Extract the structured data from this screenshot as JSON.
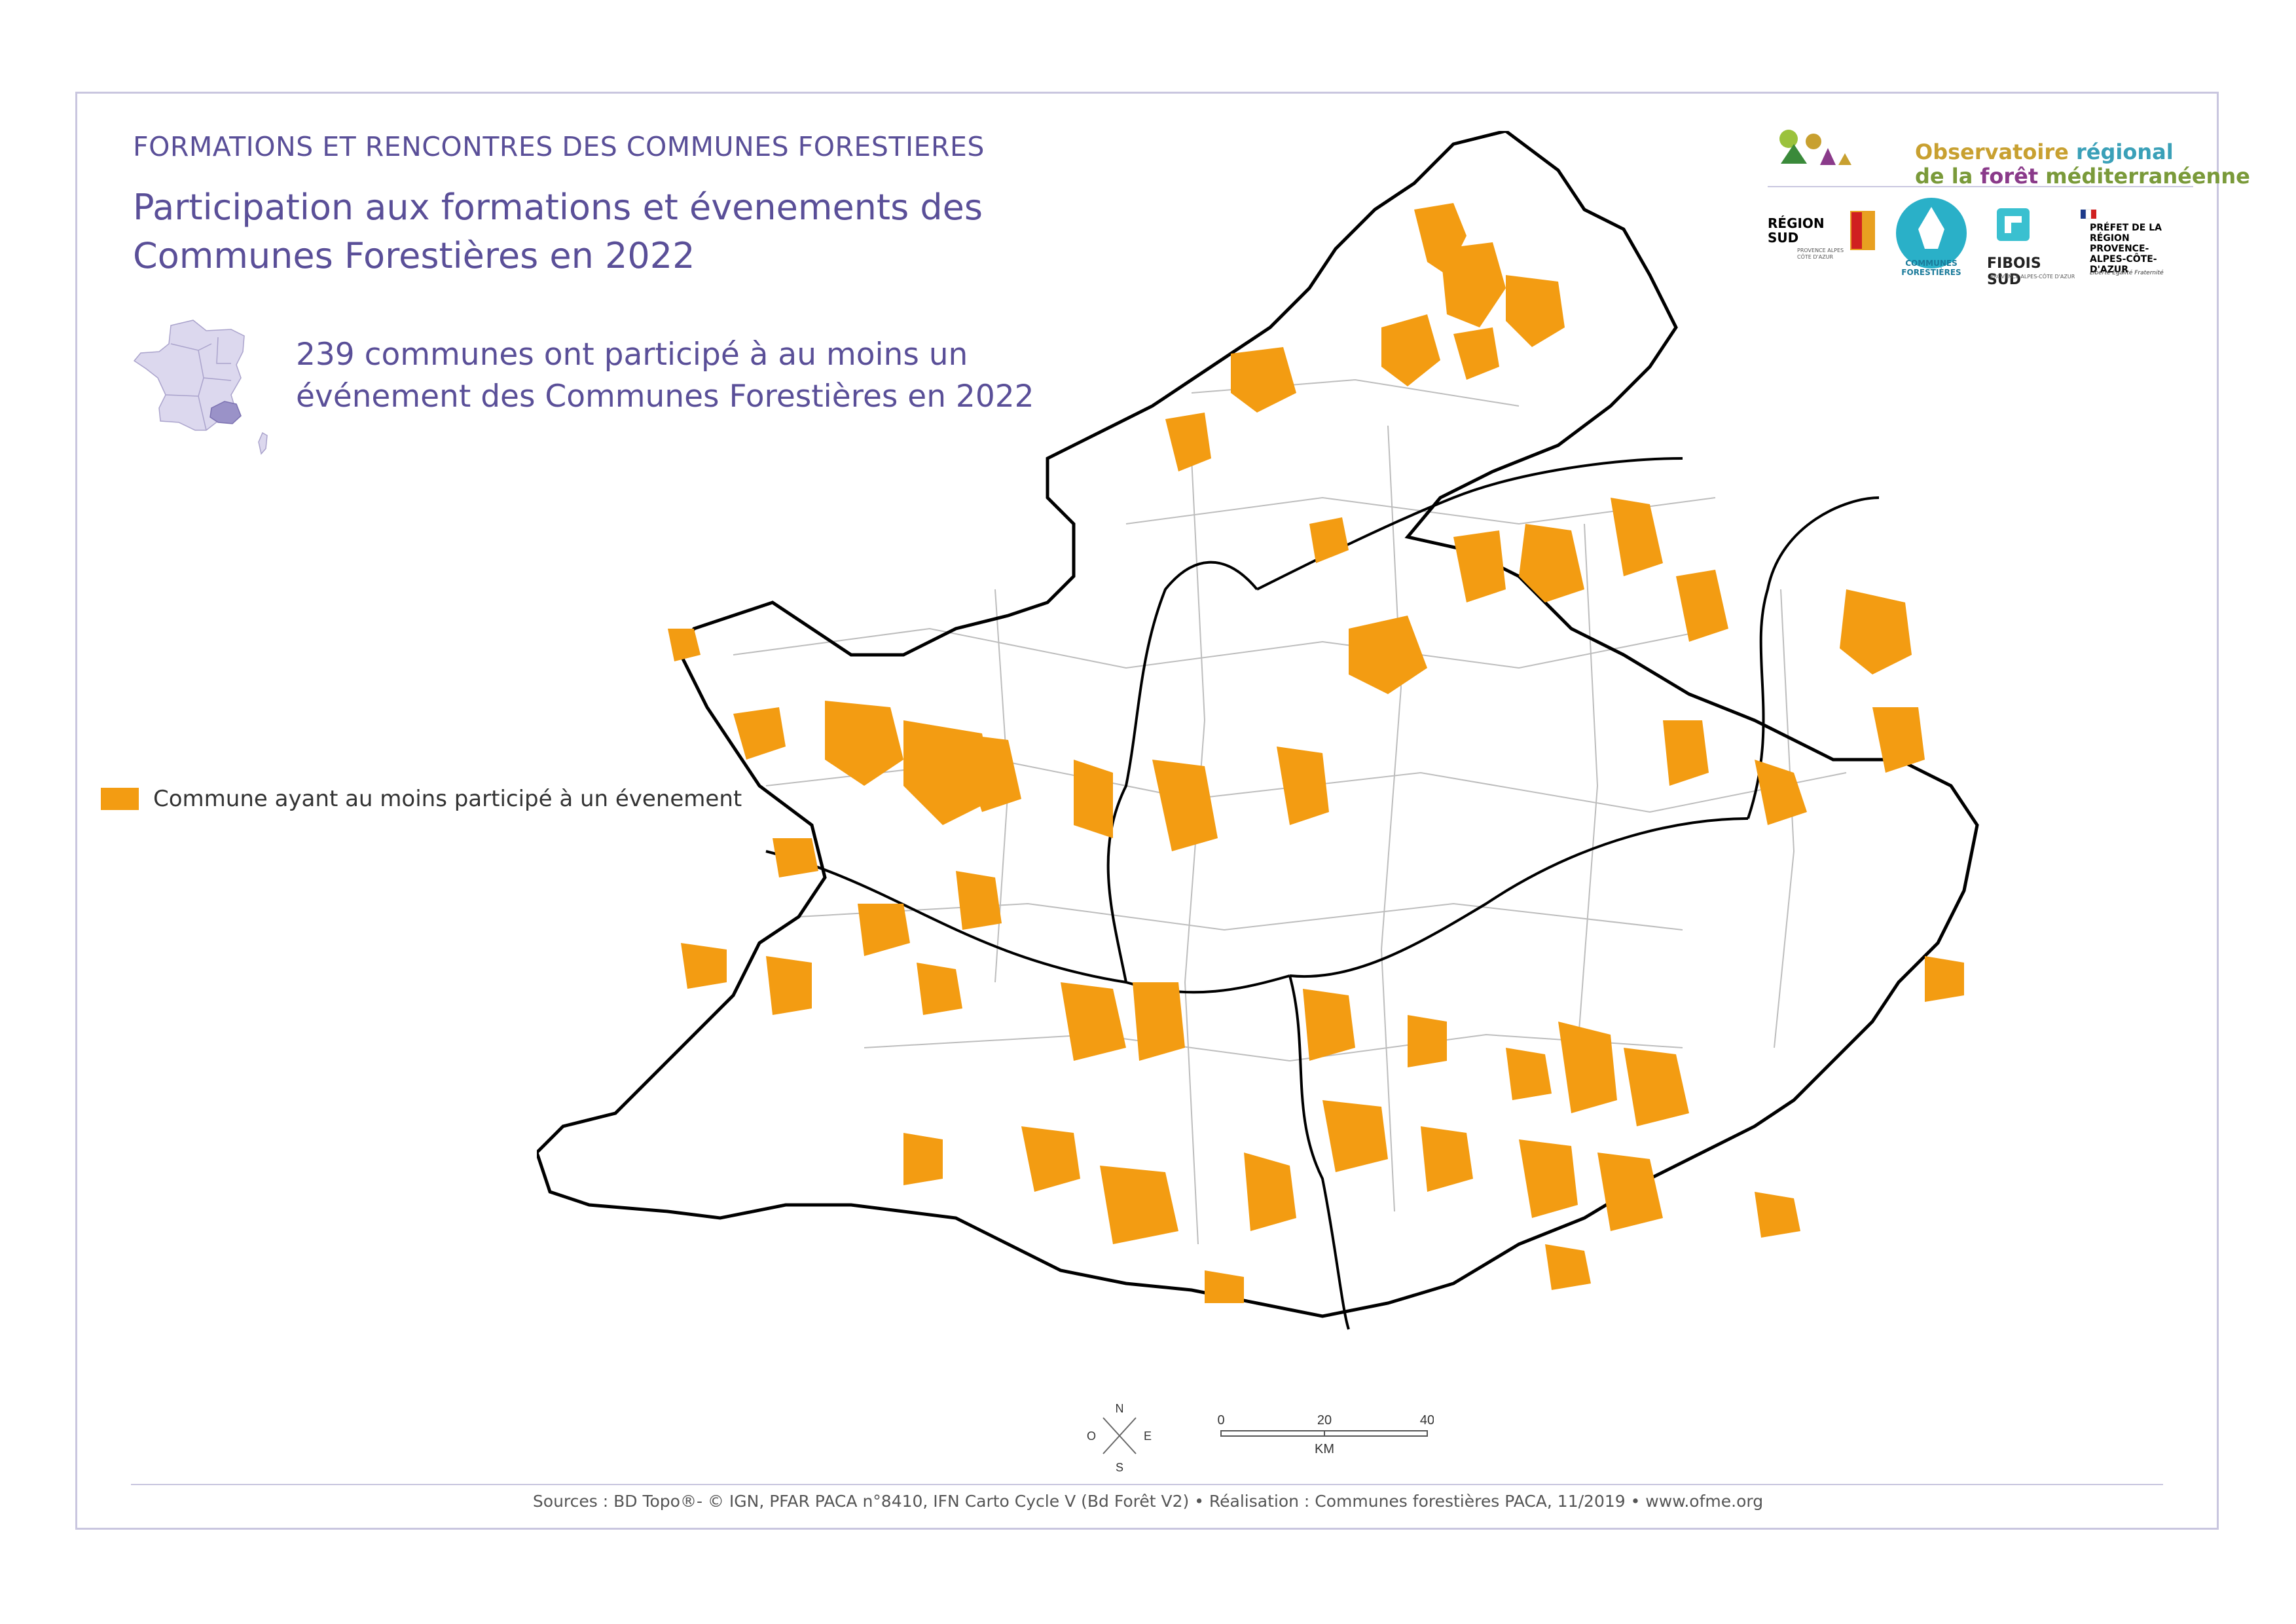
{
  "overline": "FORMATIONS ET RENCONTRES DES COMMUNES FORESTIERES",
  "title": "Participation aux formations et évenements des Communes Forestières en 2022",
  "subtitle": "239 communes ont participé à au moins un événement des Communes Forestières en 2022",
  "legend": {
    "label": "Commune ayant au moins participé à un évenement",
    "color": "#f39c12"
  },
  "logos": {
    "observatoire_line1a": "Observatoire ",
    "observatoire_line1b": "régional",
    "observatoire_line2a": "de la ",
    "observatoire_line2b": "forêt",
    "observatoire_line2c": " méditerranéenne",
    "region": "RÉGION SUD",
    "region_sub": "PROVENCE ALPES CÔTE D'AZUR",
    "communes": "COMMUNES FORESTIÈRES",
    "fibois": "FIBOIS SUD",
    "fibois_sub": "PROVENCE-ALPES-CÔTE D'AZUR",
    "prefet": "PRÉFET DE LA RÉGION PROVENCE-ALPES-CÔTE-D'AZUR",
    "prefet_motto": "Liberté Égalité Fraternité"
  },
  "compass": {
    "n": "N",
    "s": "S",
    "e": "E",
    "o": "O"
  },
  "scale": {
    "t0": "0",
    "t1": "20",
    "t2": "40",
    "unit": "KM"
  },
  "sources": "Sources : BD Topo®- © IGN, PFAR PACA n°8410, IFN Carto Cycle V (Bd Forêt V2) • Réalisation : Communes forestières PACA, 11/2019 • www.ofme.org",
  "colors": {
    "accent": "#5a4f98",
    "fill": "#f39c12",
    "region": "#9a92c8",
    "france": "#dcd8ee"
  }
}
